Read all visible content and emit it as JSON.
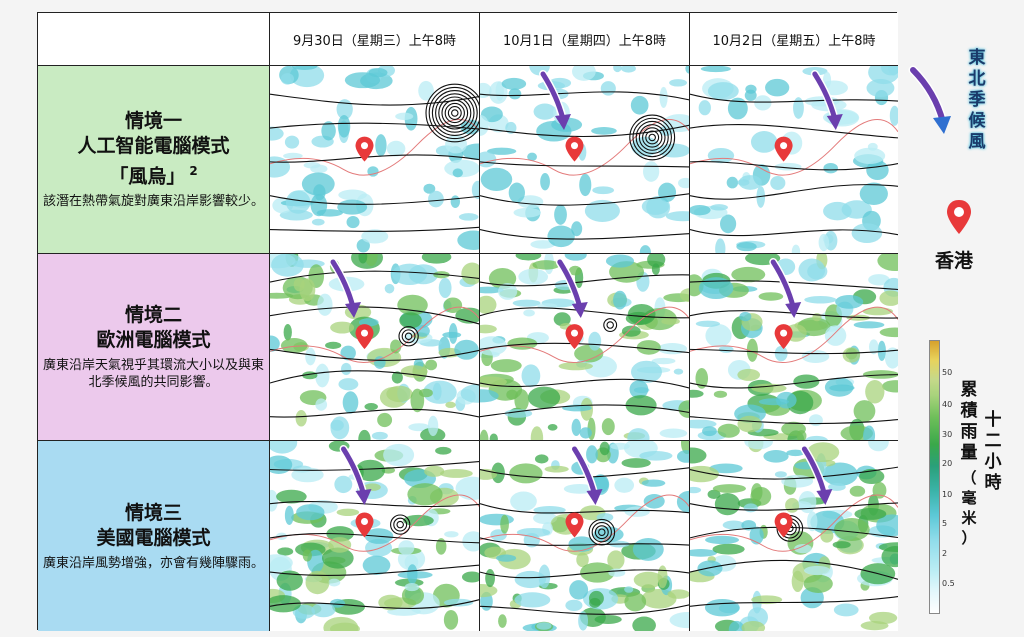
{
  "headers": [
    "9月30日（星期三）上午8時",
    "10月1日（星期四）上午8時",
    "10月2日（星期五）上午8時"
  ],
  "scenarios": [
    {
      "line1": "情境一",
      "line2": "人工智能電腦模式",
      "line3": "「風烏」",
      "note_mark": "2",
      "desc": "該潛在熱帶氣旋對廣東沿岸影響較少。",
      "bg": "#c9ebc2"
    },
    {
      "line1": "情境二",
      "line2": "歐洲電腦模式",
      "line3": "",
      "desc": "廣東沿岸天氣視乎其環流大小以及與東北季候風的共同影響。",
      "bg": "#ecc9ec"
    },
    {
      "line1": "情境三",
      "line2": "美國電腦模式",
      "line3": "",
      "desc": "廣東沿岸風勢增強，亦會有幾陣驟雨。",
      "bg": "#a9dbf2"
    }
  ],
  "legend": {
    "monsoon_label": "東北季候風",
    "hk_label": "香港",
    "rain_label_a": "累積雨量",
    "rain_label_b": "十二小時",
    "unit": "（毫米）",
    "ticks": [
      "50",
      "40",
      "30",
      "20",
      "10",
      "5",
      "2",
      "0.5"
    ]
  },
  "colors": {
    "monsoon_arrow": "#6b3fae",
    "marker": "#e8393a",
    "contour": "#111111",
    "coast": "#e37a7a"
  }
}
